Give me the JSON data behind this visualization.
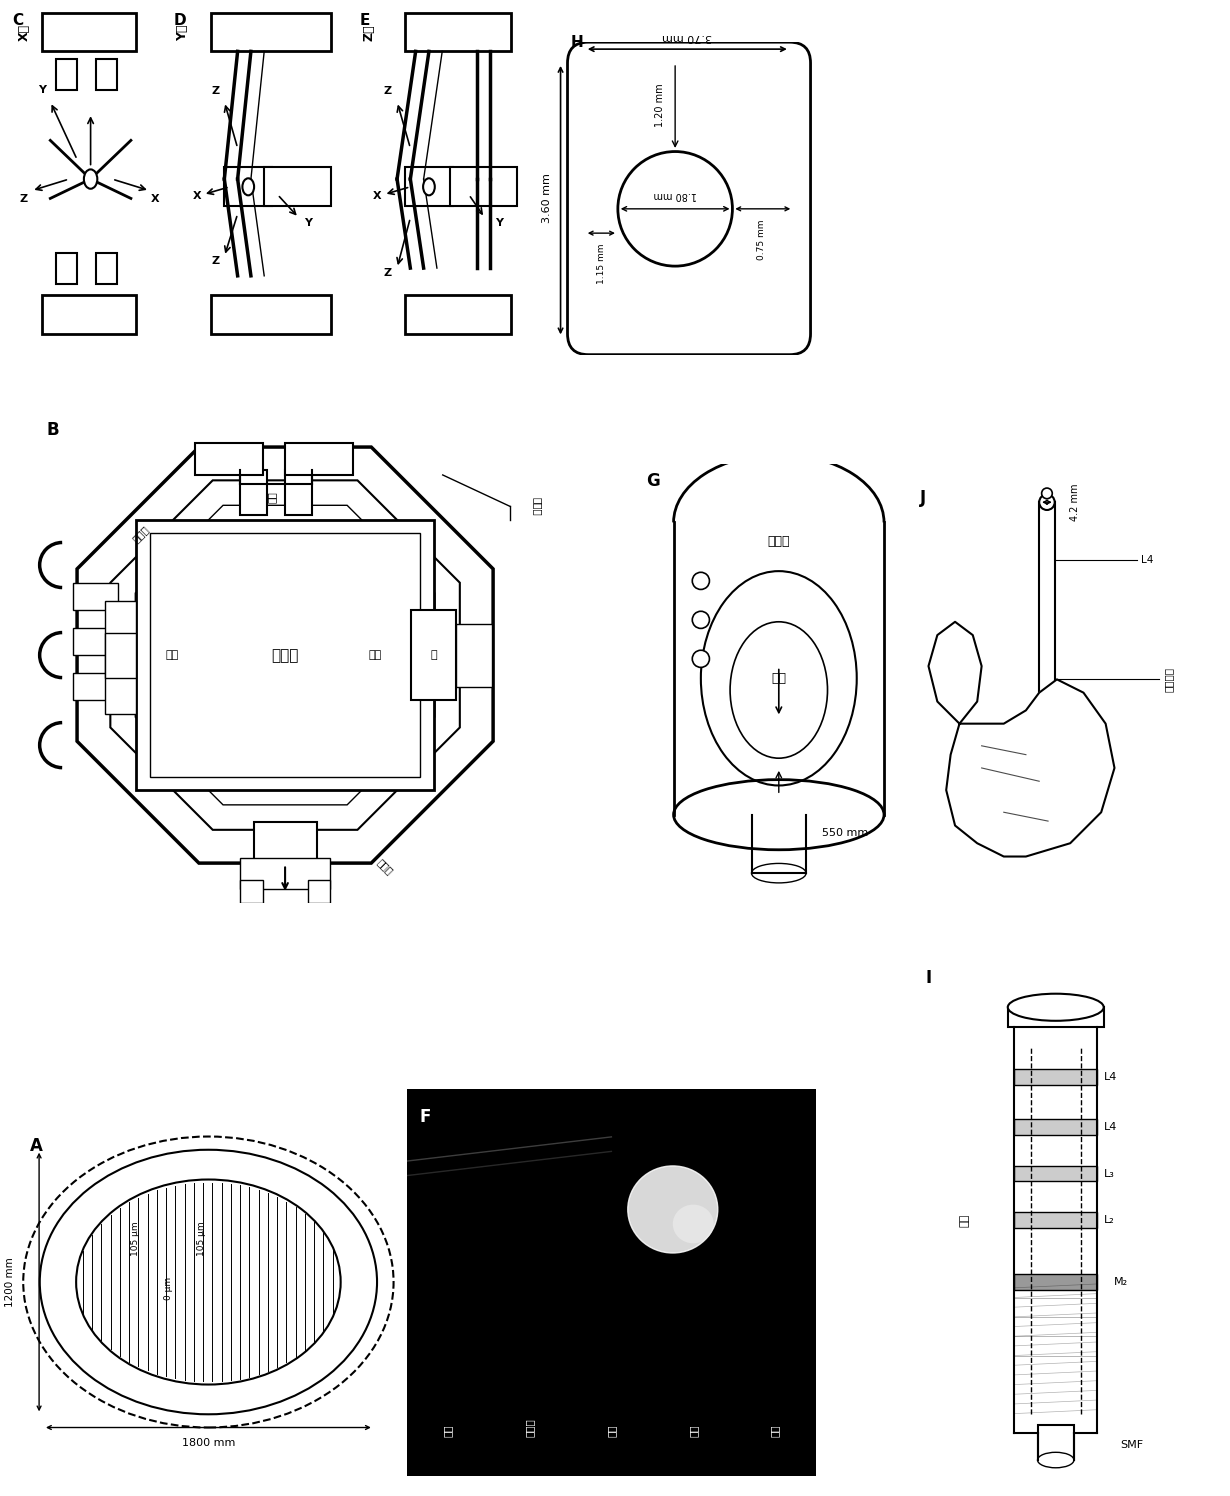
{
  "bg_color": "#ffffff",
  "black": "#000000",
  "white": "#ffffff"
}
